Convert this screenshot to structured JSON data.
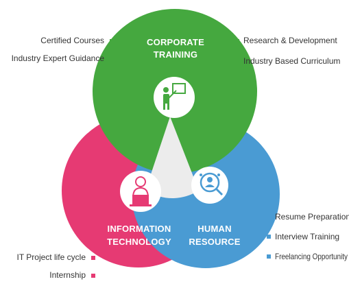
{
  "colors": {
    "green": "#45a83f",
    "pink": "#e63a73",
    "blue": "#4a9bd3",
    "center": "#ececec",
    "icon_bg": "#ffffff"
  },
  "circles": {
    "corporate": {
      "title_line1": "CORPORATE",
      "title_line2": "TRAINING",
      "icon": "presentation-teacher-icon",
      "left_items": [
        "Certified Courses",
        "Industry Expert Guidance"
      ],
      "right_items": [
        "Research & Development",
        "Industry Based Curriculum"
      ]
    },
    "it": {
      "title_line1": "INFORMATION",
      "title_line2": "TECHNOLOGY",
      "icon": "laptop-user-icon",
      "items": [
        "IT Project life cycle",
        "Internship"
      ]
    },
    "hr": {
      "title_line1": "HUMAN",
      "title_line2": "RESOURCE",
      "icon": "user-search-icon",
      "items": [
        "Resume Preparation",
        "Interview Training",
        "Freelancing Opportunity"
      ]
    }
  }
}
